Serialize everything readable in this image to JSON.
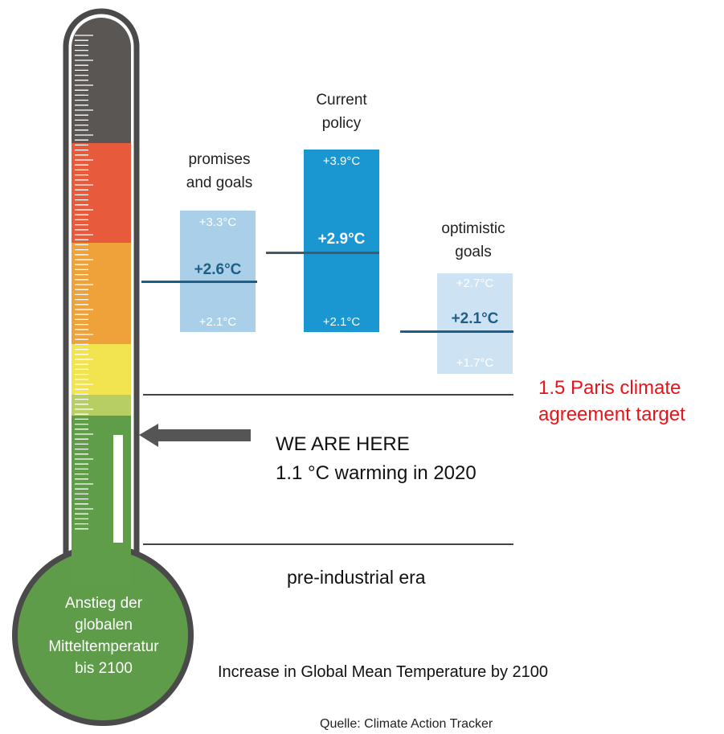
{
  "thermometer": {
    "bulb_text": [
      "Anstieg der",
      "globalen",
      "Mitteltemperatur",
      "bis 2100"
    ],
    "colors": {
      "outline": "#4a4a4a",
      "top_band": "#5a5653",
      "red_band": "#e85a3c",
      "orange_band": "#f0a23a",
      "yellow_band": "#f2e44e",
      "light_green_band": "#b7cf62",
      "green_band": "#5f9d49",
      "bulb": "#5e9c4a"
    },
    "current_level_fraction": 0.22
  },
  "scenarios": [
    {
      "id": "promises",
      "title_lines": [
        "promises",
        "and goals"
      ],
      "high": "+3.3°C",
      "mid": "+2.6°C",
      "low": "+2.1°C",
      "color": "#a9cfe9",
      "mid_text_color": "#1e5f86",
      "low_value": 2.1,
      "mid_value": 2.6,
      "high_value": 3.3
    },
    {
      "id": "current-policy",
      "title_lines": [
        "Current",
        "policy"
      ],
      "high": "+3.9°C",
      "mid": "+2.9°C",
      "low": "+2.1°C",
      "color": "#1a97d0",
      "mid_text_color": "#ffffff",
      "low_value": 2.1,
      "mid_value": 2.9,
      "high_value": 3.9
    },
    {
      "id": "optimistic",
      "title_lines": [
        "optimistic",
        "goals"
      ],
      "high": "+2.7°C",
      "mid": "+2.1°C",
      "low": "+1.7°C",
      "color": "#cde3f3",
      "mid_text_color": "#1e5f86",
      "low_value": 1.7,
      "mid_value": 2.1,
      "high_value": 2.7
    }
  ],
  "paris": {
    "lines": [
      "1.5 Paris climate",
      "agreement target"
    ],
    "color": "#e8141a"
  },
  "here": {
    "lines": [
      "WE ARE HERE",
      "1.1 °C warming in 2020"
    ]
  },
  "preindustrial": "pre-industrial era",
  "caption": "Increase in Global Mean Temperature by 2100",
  "source": "Quelle: Climate Action Tracker"
}
